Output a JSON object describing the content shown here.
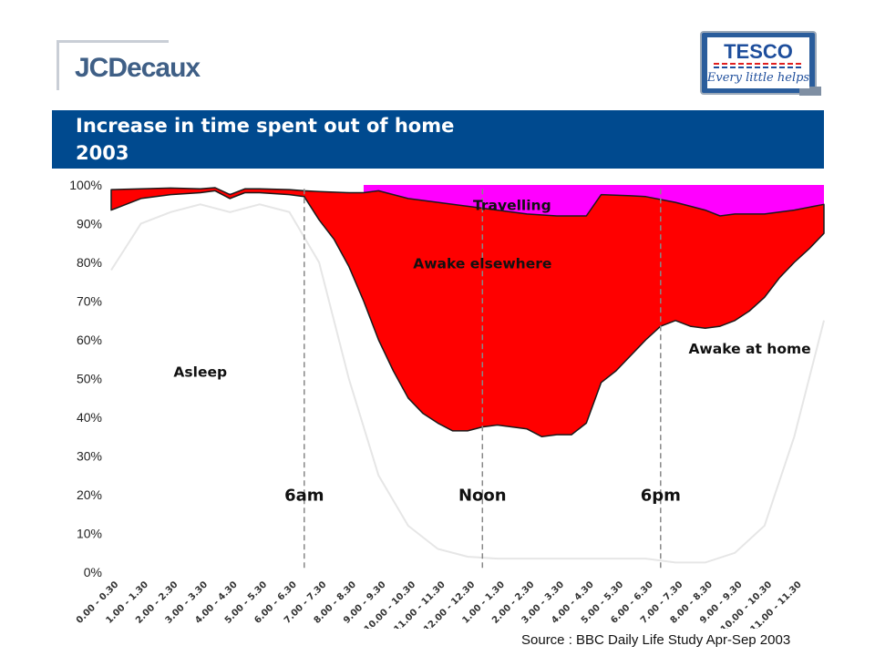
{
  "header": {
    "logo_left": "JCDecaux",
    "logo_right": {
      "brand": "TESCO",
      "tagline": "Every little helps"
    },
    "title_line1": "Increase in time spent out of home",
    "title_line2": "2003"
  },
  "source_text": "Source : BBC Daily Life Study Apr-Sep 2003",
  "colors": {
    "title_bar": "#004a8f",
    "travelling": "#ff00ff",
    "awake_elsewhere": "#ff0000",
    "outline": "#1a1a1a"
  },
  "chart_data": {
    "type": "area",
    "title": "Increase in time spent out of home 2003",
    "x": [
      "0.00 - 0.30",
      "1.00 - 1.30",
      "2.00 - 2.30",
      "3.00 - 3.30",
      "4.00 - 4.30",
      "5.00 - 5.30",
      "6.00 - 6.30",
      "7.00 - 7.30",
      "8.00 - 8.30",
      "9.00 - 9.30",
      "10.00 - 10.30",
      "11.00 - 11.30",
      "12.00 - 12.30",
      "1.00 - 1.30",
      "2.00 - 2.30",
      "3.00 - 3.30",
      "4.00 - 4.30",
      "5.00 - 5.30",
      "6.00 - 6.30",
      "7.00 - 7.30",
      "8.00 - 8.30",
      "9.00 - 9.30",
      "10.00 - 10.30",
      "11.00 - 11.30"
    ],
    "y_ticks": [
      "0%",
      "10%",
      "20%",
      "30%",
      "40%",
      "50%",
      "60%",
      "70%",
      "80%",
      "90%",
      "100%"
    ],
    "ylim": [
      0,
      100
    ],
    "at_home_boundary": [
      [
        0,
        93.5
      ],
      [
        1,
        96.5
      ],
      [
        2,
        97.5
      ],
      [
        3,
        98
      ],
      [
        3.5,
        98.5
      ],
      [
        4,
        96.5
      ],
      [
        4.5,
        98
      ],
      [
        5,
        98
      ],
      [
        6,
        97.5
      ],
      [
        6.5,
        97
      ],
      [
        7,
        91
      ],
      [
        7.5,
        86
      ],
      [
        8,
        79
      ],
      [
        8.5,
        70
      ],
      [
        9,
        60
      ],
      [
        9.5,
        52
      ],
      [
        10,
        45
      ],
      [
        10.5,
        41
      ],
      [
        11,
        38.5
      ],
      [
        11.5,
        36.5
      ],
      [
        12,
        36.5
      ],
      [
        12.5,
        37.5
      ],
      [
        13,
        38
      ],
      [
        13.5,
        37.5
      ],
      [
        14,
        37
      ],
      [
        14.5,
        35
      ],
      [
        15,
        35.5
      ],
      [
        15.5,
        35.5
      ],
      [
        16,
        38.5
      ],
      [
        16.5,
        49
      ],
      [
        17,
        52
      ],
      [
        17.5,
        56
      ],
      [
        18,
        60
      ],
      [
        18.5,
        63.5
      ],
      [
        19,
        65
      ],
      [
        19.5,
        63.5
      ],
      [
        20,
        63
      ],
      [
        20.5,
        63.5
      ],
      [
        21,
        65
      ],
      [
        21.5,
        67.5
      ],
      [
        22,
        71
      ],
      [
        22.5,
        76
      ],
      [
        23,
        80
      ],
      [
        23.5,
        83.5
      ],
      [
        24,
        87.5
      ]
    ],
    "out_home_boundary": [
      [
        0,
        98.8
      ],
      [
        1,
        99
      ],
      [
        2,
        99.2
      ],
      [
        3,
        99
      ],
      [
        3.5,
        99.3
      ],
      [
        4,
        97.5
      ],
      [
        4.5,
        99
      ],
      [
        5,
        99
      ],
      [
        6,
        98.8
      ],
      [
        6.5,
        98.5
      ],
      [
        7,
        98.3
      ],
      [
        8,
        98
      ],
      [
        8.5,
        98
      ],
      [
        9,
        98.5
      ],
      [
        9.5,
        97.5
      ],
      [
        10,
        96.5
      ],
      [
        11,
        95.5
      ],
      [
        12,
        94.5
      ],
      [
        13,
        93.5
      ],
      [
        14,
        92.5
      ],
      [
        15,
        92
      ],
      [
        16,
        92
      ],
      [
        16.5,
        97.5
      ],
      [
        17.5,
        97.2
      ],
      [
        18,
        97
      ],
      [
        19,
        95.5
      ],
      [
        20,
        93.5
      ],
      [
        20.5,
        92
      ],
      [
        21,
        92.5
      ],
      [
        22,
        92.5
      ],
      [
        23,
        93.5
      ],
      [
        24,
        95
      ]
    ],
    "series": [
      {
        "name": "Asleep"
      },
      {
        "name": "Awake at home"
      },
      {
        "name": "Awake elsewhere"
      },
      {
        "name": "Travelling"
      }
    ],
    "vertical_markers": [
      {
        "label": "6am",
        "x": 6.5
      },
      {
        "label": "Noon",
        "x": 12.5
      },
      {
        "label": "6pm",
        "x": 18.5
      }
    ]
  }
}
